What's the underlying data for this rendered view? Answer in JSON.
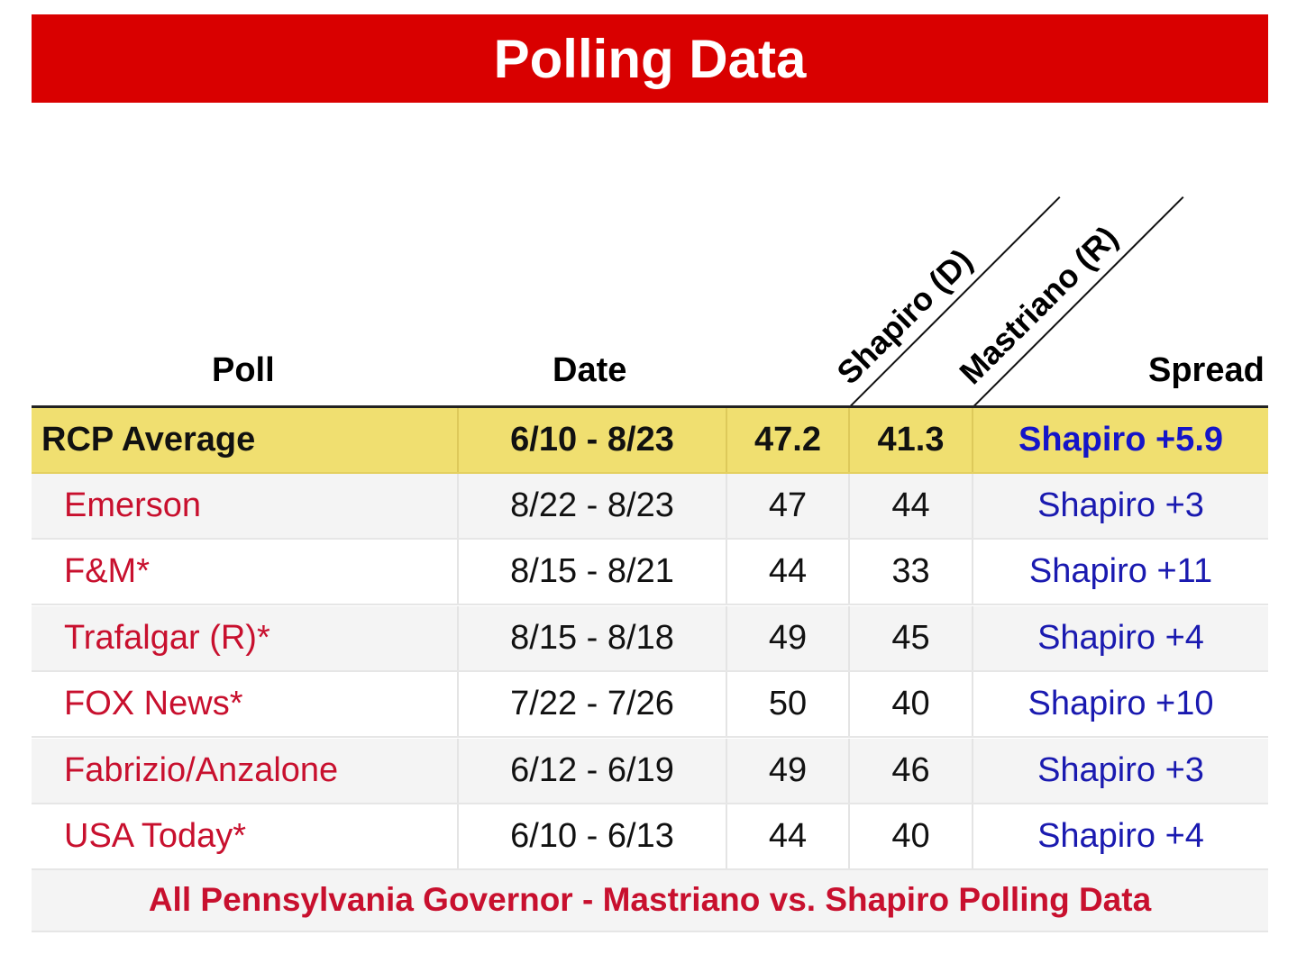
{
  "title": "Polling Data",
  "headers": {
    "poll": "Poll",
    "date": "Date",
    "candidate_d": "Shapiro (D)",
    "candidate_r": "Mastriano (R)",
    "spread": "Spread"
  },
  "average": {
    "poll": "RCP Average",
    "date": "6/10 - 8/23",
    "d": "47.2",
    "r": "41.3",
    "spread": "Shapiro +5.9"
  },
  "rows": [
    {
      "poll": "Emerson",
      "date": "8/22 - 8/23",
      "d": "47",
      "r": "44",
      "spread": "Shapiro +3"
    },
    {
      "poll": "F&M*",
      "date": "8/15 - 8/21",
      "d": "44",
      "r": "33",
      "spread": "Shapiro +11"
    },
    {
      "poll": "Trafalgar (R)*",
      "date": "8/15 - 8/18",
      "d": "49",
      "r": "45",
      "spread": "Shapiro +4"
    },
    {
      "poll": "FOX News*",
      "date": "7/22 - 7/26",
      "d": "50",
      "r": "40",
      "spread": "Shapiro +10"
    },
    {
      "poll": "Fabrizio/Anzalone",
      "date": "6/12 - 6/19",
      "d": "49",
      "r": "46",
      "spread": "Shapiro +3"
    },
    {
      "poll": "USA Today*",
      "date": "6/10 - 6/13",
      "d": "44",
      "r": "40",
      "spread": "Shapiro +4"
    }
  ],
  "footer_link": "All Pennsylvania Governor - Mastriano vs. Shapiro Polling Data",
  "colors": {
    "banner": "#d90000",
    "average_row": "#f0df70",
    "poll_name": "#c8102e",
    "spread": "#1a1ab0"
  }
}
